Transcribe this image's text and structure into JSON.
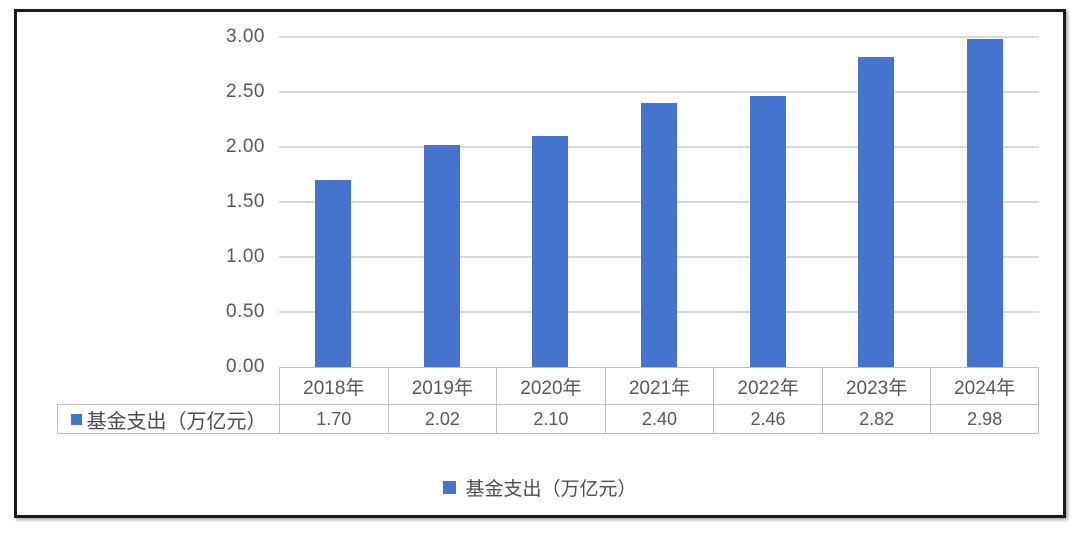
{
  "chart_data": {
    "type": "bar",
    "title": "",
    "categories": [
      "2018年",
      "2019年",
      "2020年",
      "2021年",
      "2022年",
      "2023年",
      "2024年"
    ],
    "series": [
      {
        "name": "基金支出（万亿元）",
        "values": [
          1.7,
          2.02,
          2.1,
          2.4,
          2.46,
          2.82,
          2.98
        ],
        "value_labels": [
          "1.70",
          "2.02",
          "2.10",
          "2.40",
          "2.46",
          "2.82",
          "2.98"
        ]
      }
    ],
    "ylim": [
      0.0,
      3.0
    ],
    "ytick_step": 0.5,
    "ytick_labels": [
      "0.00",
      "0.50",
      "1.00",
      "1.50",
      "2.00",
      "2.50",
      "3.00"
    ],
    "xlabel": "",
    "ylabel": "",
    "grid": true,
    "data_table_shown": true,
    "legend_position": "bottom",
    "legend_label": "基金支出（万亿元）",
    "colors": {
      "bar": "#4673cd",
      "gridline": "#d9d9d9",
      "table_border": "#bfbfbf",
      "tick_text": "#595959",
      "cjk_text": "#4d4d4d",
      "frame_border": "#1a1a1a"
    }
  }
}
